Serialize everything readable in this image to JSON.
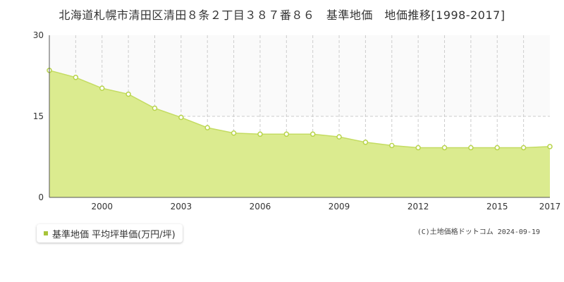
{
  "chart_data": {
    "type": "area",
    "title": "北海道札幌市清田区清田８条２丁目３８７番８６　基準地価　地価推移[1998-2017]",
    "x": [
      1998,
      1999,
      2000,
      2001,
      2002,
      2003,
      2004,
      2005,
      2006,
      2007,
      2008,
      2009,
      2010,
      2011,
      2012,
      2013,
      2014,
      2015,
      2016,
      2017
    ],
    "series": [
      {
        "name": "基準地価 平均坪単価(万円/坪)",
        "values": [
          23.5,
          22.2,
          20.2,
          19.1,
          16.5,
          14.8,
          12.9,
          11.9,
          11.7,
          11.7,
          11.7,
          11.2,
          10.2,
          9.6,
          9.2,
          9.2,
          9.2,
          9.2,
          9.2,
          9.4
        ]
      }
    ],
    "ylim": [
      0,
      30
    ],
    "yticks": [
      "0",
      "15",
      "30"
    ],
    "xticks": [
      "2000",
      "2003",
      "2006",
      "2009",
      "2012",
      "2015",
      "2017"
    ],
    "xtick_years": [
      2000,
      2003,
      2006,
      2009,
      2012,
      2015,
      2017
    ],
    "fill_color": "#dbeb8f",
    "line_color": "#c4dc62",
    "point_color": "#b8d44a"
  },
  "legend": {
    "label": "基準地価 平均坪単価(万円/坪)"
  },
  "copyright": "(C)土地価格ドットコム 2024-09-19"
}
